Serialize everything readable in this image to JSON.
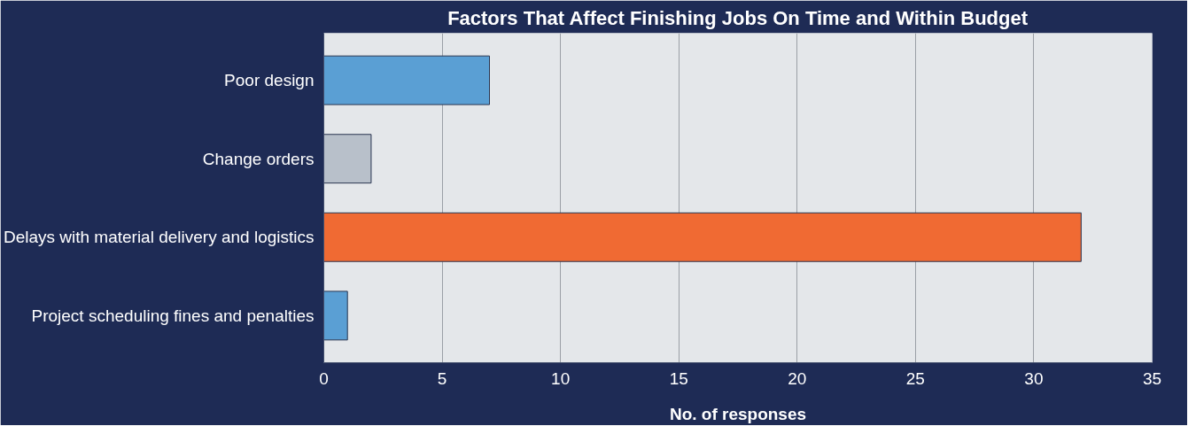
{
  "chart_data": {
    "type": "bar",
    "orientation": "horizontal",
    "title": "Factors That Affect Finishing Jobs On Time and Within Budget",
    "categories": [
      "Poor design",
      "Change orders",
      "Delays with material delivery and logistics",
      "Project scheduling fines and penalties"
    ],
    "values": [
      7,
      2,
      32,
      1
    ],
    "colors": [
      "#5a9fd4",
      "#b8c0ca",
      "#f06a33",
      "#5a9fd4"
    ],
    "xlim": [
      0,
      35
    ],
    "xticks": [
      0,
      5,
      10,
      15,
      20,
      25,
      30,
      35
    ],
    "xlabel": "No. of responses",
    "grid": "x"
  }
}
